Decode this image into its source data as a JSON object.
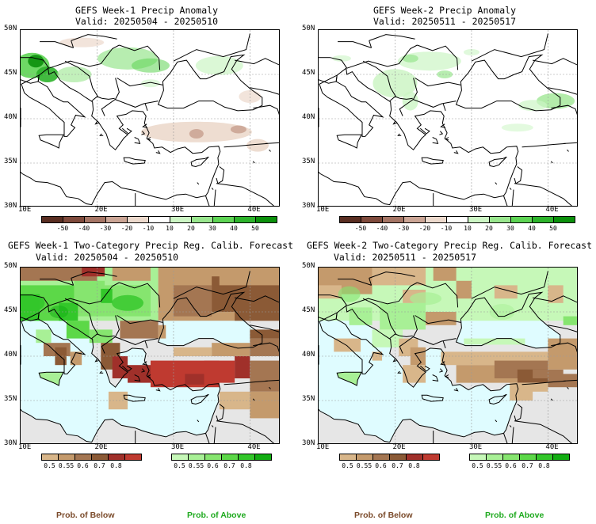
{
  "panels": [
    {
      "title": "GEFS Week-1 Precip Anomaly",
      "valid": "Valid: 20250504 - 20250510",
      "lat_labels": [
        "50N",
        "45N",
        "40N",
        "35N",
        "30N"
      ],
      "lon_labels": [
        "10E",
        "20E",
        "30E",
        "40E"
      ],
      "kind": "anomaly"
    },
    {
      "title": "GEFS Week-2 Precip Anomaly",
      "valid": "Valid: 20250511 - 20250517",
      "lat_labels": [
        "50N",
        "45N",
        "40N",
        "35N",
        "30N"
      ],
      "lon_labels": [
        "10E",
        "20E",
        "30E",
        "40E"
      ],
      "kind": "anomaly"
    },
    {
      "title": "GEFS Week-1 Two-Category Precip Reg. Calib. Forecast",
      "valid": "Valid: 20250504 - 20250510",
      "lat_labels": [
        "50N",
        "45N",
        "40N",
        "35N",
        "30N"
      ],
      "lon_labels": [
        "10E",
        "20E",
        "30E",
        "40E"
      ],
      "kind": "prob"
    },
    {
      "title": "GEFS Week-2 Two-Category Precip Reg. Calib. Forecast",
      "valid": "Valid: 20250511 - 20250517",
      "lat_labels": [
        "50N",
        "45N",
        "40N",
        "35N",
        "30N"
      ],
      "lon_labels": [
        "10E",
        "20E",
        "30E",
        "40E"
      ],
      "kind": "prob"
    }
  ],
  "anomaly_colorbar": {
    "ticks": [
      "-50",
      "-40",
      "-30",
      "-20",
      "-10",
      "10",
      "20",
      "30",
      "40",
      "50"
    ],
    "colors": [
      "#5a2e22",
      "#7f4a3c",
      "#a57565",
      "#cba595",
      "#ecd9cc",
      "#ffffff",
      "#ccf5c4",
      "#99e68e",
      "#5ed454",
      "#2db32b",
      "#0b900b"
    ]
  },
  "below_colorbar": {
    "ticks": [
      "0.5",
      "0.55",
      "0.6",
      "0.7",
      "0.8"
    ],
    "colors": [
      "#d8b68a",
      "#c49a6c",
      "#a47652",
      "#8b5a36",
      "#a0302a",
      "#bf3a30"
    ]
  },
  "above_colorbar": {
    "ticks": [
      "0.5",
      "0.55",
      "0.6",
      "0.7",
      "0.8"
    ],
    "colors": [
      "#c6f8b8",
      "#a8f096",
      "#86e56f",
      "#5cd848",
      "#33c72a",
      "#12ad12"
    ]
  },
  "prob_labels": {
    "below": "Prob. of Below",
    "above": "Prob. of Above"
  },
  "colors": {
    "below_text": "#7a4a2a",
    "above_text": "#1faa1f",
    "sea": "#dffcff",
    "nodata": "#e6e6e6"
  }
}
